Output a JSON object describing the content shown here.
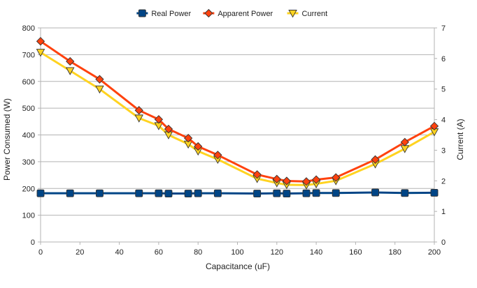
{
  "chart_data": {
    "type": "line",
    "xlabel": "Capacitance (uF)",
    "ylabel": "Power Consumed (W)",
    "y2label": "Current (A)",
    "xlim": [
      0,
      200
    ],
    "ylim": [
      0,
      800
    ],
    "y2lim": [
      0,
      7
    ],
    "x_ticks": [
      "0",
      "20",
      "40",
      "60",
      "80",
      "100",
      "120",
      "140",
      "160",
      "180",
      "200"
    ],
    "y_ticks": [
      "0",
      "100",
      "200",
      "300",
      "400",
      "500",
      "600",
      "700",
      "800"
    ],
    "y2_ticks": [
      "0",
      "1",
      "2",
      "3",
      "4",
      "5",
      "6",
      "7"
    ],
    "grid": "horizontal",
    "legend_position": "top",
    "x": [
      0,
      15,
      30,
      50,
      60,
      65,
      75,
      80,
      90,
      110,
      120,
      125,
      135,
      140,
      150,
      170,
      185,
      200
    ],
    "series": [
      {
        "name": "Real Power",
        "axis": "left",
        "color": "#004586",
        "marker": "square",
        "values": [
          182,
          182,
          182,
          182,
          182,
          181,
          181,
          182,
          182,
          181,
          182,
          181,
          182,
          183,
          183,
          185,
          183,
          184
        ]
      },
      {
        "name": "Apparent Power",
        "axis": "left",
        "color": "#ff420e",
        "marker": "diamond",
        "values": [
          750,
          675,
          608,
          492,
          458,
          422,
          388,
          357,
          325,
          252,
          235,
          228,
          226,
          233,
          241,
          308,
          373,
          433
        ]
      },
      {
        "name": "Current",
        "axis": "right",
        "color": "#ffd320",
        "marker": "triangle-down",
        "values": [
          6.2,
          5.6,
          5.0,
          4.05,
          3.8,
          3.5,
          3.2,
          2.97,
          2.7,
          2.07,
          1.93,
          1.87,
          1.86,
          1.9,
          2.0,
          2.55,
          3.05,
          3.6
        ]
      }
    ]
  }
}
